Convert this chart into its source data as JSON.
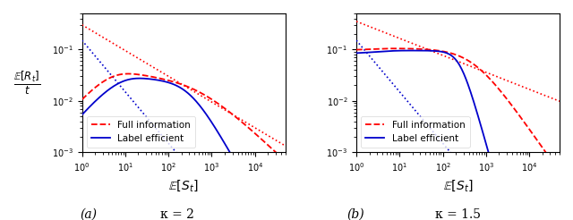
{
  "title_a": "(a)",
  "title_b": "(b)",
  "kappa_a": "κ = 2",
  "kappa_b": "κ = 1.5",
  "xlabel": "$\\mathbb{E}[S_t]$",
  "ylabel": "$\\frac{\\mathbb{E}[R_t]}{t}$",
  "xlim": [
    1,
    50000
  ],
  "ylim": [
    0.001,
    0.5
  ],
  "legend_labels": [
    "Full information",
    "Label efficient"
  ],
  "line_colors": [
    "#ff0000",
    "#0000cc"
  ],
  "background_color": "#ffffff"
}
